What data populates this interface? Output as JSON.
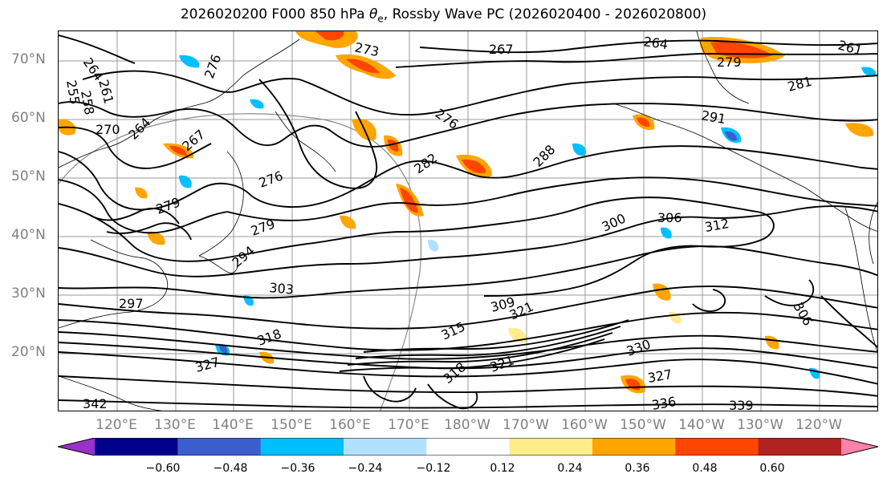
{
  "title": {
    "prefix": "2026020200 F000 850 hPa ",
    "theta": "θ",
    "sub": "e",
    "suffix": ", Rossby Wave PC (2026020400 - 2026020800)"
  },
  "lat_labels": [
    "70°N",
    "60°N",
    "50°N",
    "40°N",
    "30°N",
    "20°N"
  ],
  "lon_labels": [
    "120°E",
    "130°E",
    "140°E",
    "150°E",
    "160°E",
    "170°E",
    "180°W",
    "170°W",
    "160°W",
    "150°W",
    "140°W",
    "130°W",
    "120°W"
  ],
  "colorbar": {
    "colors": [
      "#9932CC",
      "#00008B",
      "#3A5FCD",
      "#00BFFF",
      "#B0E2FF",
      "#FFFFFF",
      "#FFEC8B",
      "#FFA500",
      "#FF4500",
      "#B22222",
      "#FF82AB"
    ],
    "ticks": [
      "−0.60",
      "−0.48",
      "−0.36",
      "−0.24",
      "−0.12",
      "0.12",
      "0.24",
      "0.36",
      "0.48",
      "0.60"
    ]
  },
  "contour_labels": [
    "264",
    "267",
    "264",
    "261",
    "273",
    "279",
    "258",
    "255",
    "261",
    "270",
    "264",
    "267",
    "276",
    "276",
    "282",
    "288",
    "276",
    "279",
    "279",
    "291",
    "281",
    "294",
    "303",
    "300",
    "306",
    "312",
    "297",
    "309",
    "321",
    "318",
    "327",
    "315",
    "306",
    "330",
    "327",
    "336",
    "339",
    "342",
    "318",
    "321"
  ]
}
